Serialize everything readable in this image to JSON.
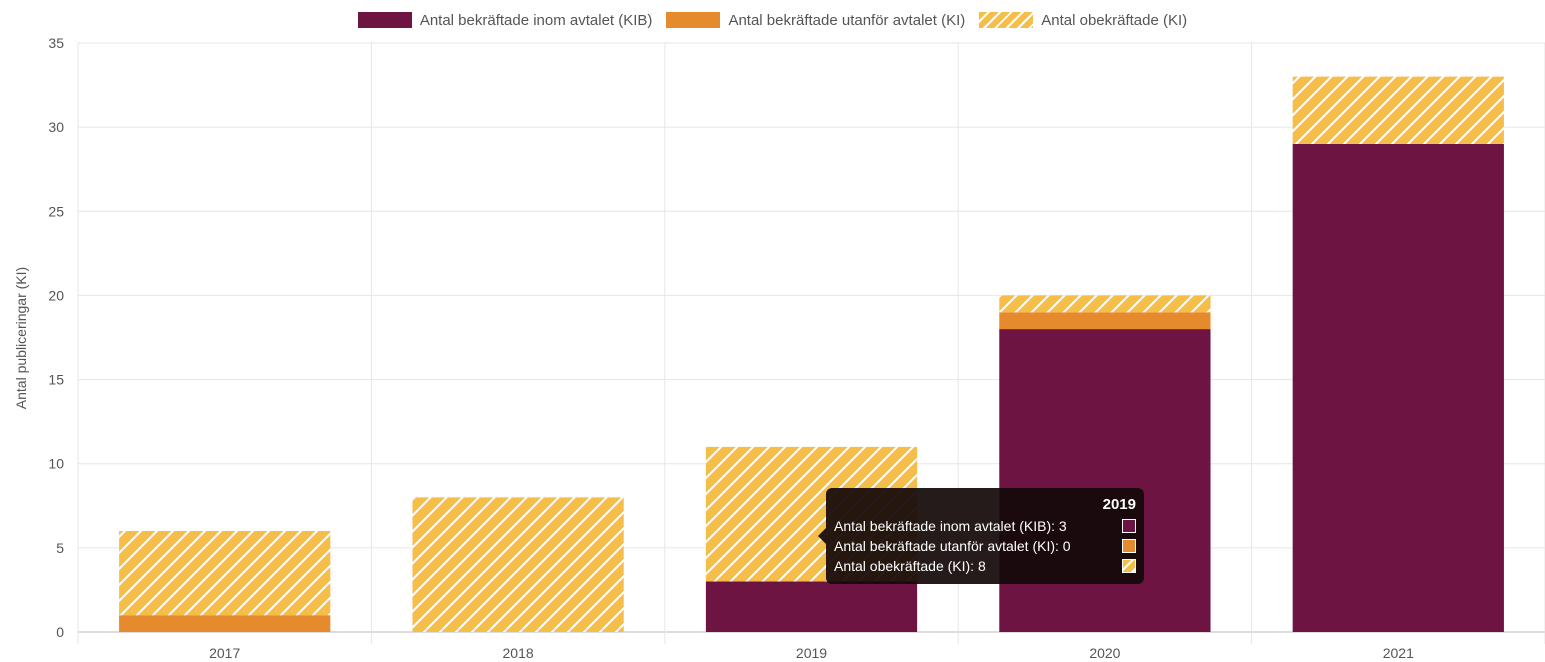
{
  "chart_data": {
    "type": "bar",
    "stacked": true,
    "categories": [
      "2017",
      "2018",
      "2019",
      "2020",
      "2021"
    ],
    "series": [
      {
        "name": "Antal bekräftade inom avtalet (KIB)",
        "values": [
          0,
          0,
          3,
          18,
          29
        ],
        "color": "#6E1443",
        "pattern": "solid"
      },
      {
        "name": "Antal bekräftade utanför avtalet (KI)",
        "values": [
          1,
          0,
          0,
          1,
          0
        ],
        "color": "#E68A2E",
        "pattern": "solid"
      },
      {
        "name": "Antal obekräftade (KI)",
        "values": [
          5,
          8,
          8,
          1,
          4
        ],
        "color": "#F6BE48",
        "pattern": "hatched"
      }
    ],
    "title": "",
    "xlabel": "",
    "ylabel": "Antal publiceringar (KI)",
    "ylim": [
      0,
      35
    ],
    "yticks": [
      0,
      5,
      10,
      15,
      20,
      25,
      30,
      35
    ],
    "grid": true,
    "legend": "top-center"
  },
  "tooltip": {
    "title": "2019",
    "rows": [
      {
        "text": "Antal bekräftade inom avtalet (KIB): 3",
        "color": "#6E1443",
        "pattern": "solid"
      },
      {
        "text": "Antal bekräftade utanför avtalet (KI): 0",
        "color": "#E68A2E",
        "pattern": "solid"
      },
      {
        "text": "Antal obekräftade (KI): 8",
        "color": "#F6BE48",
        "pattern": "hatched"
      }
    ]
  }
}
